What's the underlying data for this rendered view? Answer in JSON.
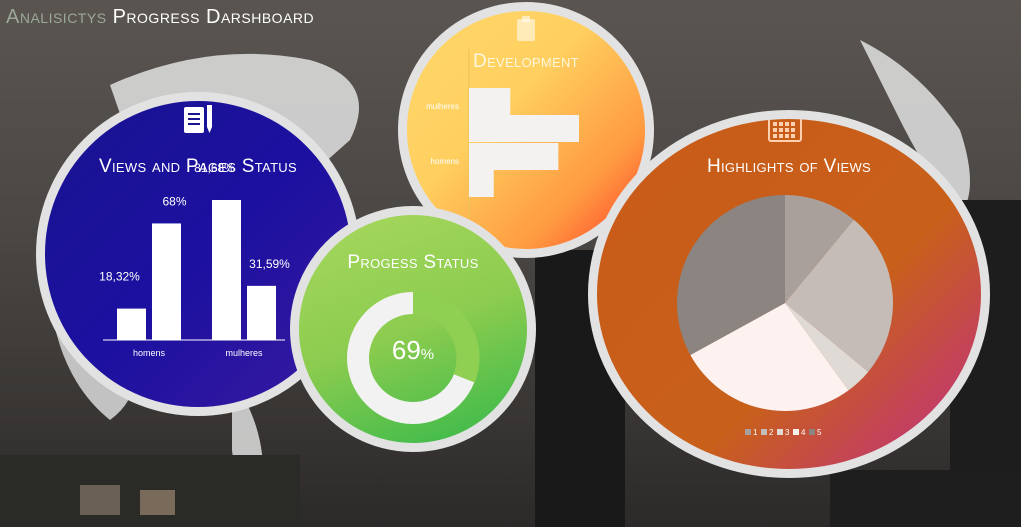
{
  "header": {
    "title_part1": "Analisictys",
    "title_part2": "Progress Darshboard"
  },
  "panels": {
    "views": {
      "title": "Views and Pages Status",
      "icon": "document-pencil-icon"
    },
    "development": {
      "title": "Development",
      "icon": "clipboard-icon"
    },
    "progress": {
      "title": "Progess Status",
      "value": 69,
      "value_text": "69",
      "unit": "%"
    },
    "highlights": {
      "title": "Highlights of Views",
      "icon": "calendar-icon"
    }
  },
  "chart_data": [
    {
      "type": "bar",
      "title": "Views and Pages Status",
      "categories": [
        "homens",
        "mulheres"
      ],
      "series": [
        {
          "values": [
            18.32,
            81.68
          ],
          "labels": [
            "18,32%",
            "81,68%"
          ]
        },
        {
          "values": [
            68,
            31.59
          ],
          "labels": [
            "68%",
            "31,59%"
          ]
        }
      ]
    },
    {
      "type": "bar",
      "orientation": "horizontal",
      "title": "Development",
      "categories": [
        "mulheres",
        "homens"
      ],
      "series": [
        {
          "values": [
            30,
            65
          ]
        },
        {
          "values": [
            80,
            18
          ]
        }
      ]
    },
    {
      "type": "pie",
      "title": "Progess Status",
      "values": [
        69,
        31
      ],
      "center_label": "69%"
    },
    {
      "type": "pie",
      "title": "Highlights of Views",
      "categories": [
        "1",
        "2",
        "3",
        "4",
        "5"
      ],
      "values": [
        11,
        25,
        4,
        27,
        33
      ],
      "colors": [
        "#a9a09c",
        "#c5bbb7",
        "#e0dad6",
        "#fdf2ef",
        "#8c8481"
      ],
      "legend": "bottom"
    }
  ]
}
